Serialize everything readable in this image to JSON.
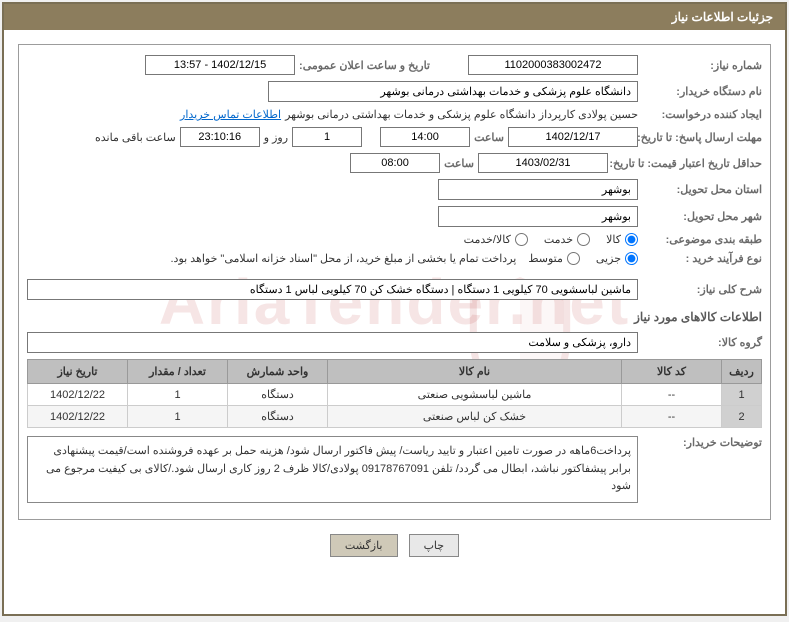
{
  "header": {
    "title": "جزئیات اطلاعات نیاز"
  },
  "fields": {
    "need_number_label": "شماره نیاز:",
    "need_number": "1102000383002472",
    "announce_label": "تاریخ و ساعت اعلان عمومی:",
    "announce_value": "1402/12/15 - 13:57",
    "buyer_org_label": "نام دستگاه خریدار:",
    "buyer_org": "دانشگاه علوم پزشکی و خدمات بهداشتی درمانی بوشهر",
    "requester_label": "ایجاد کننده درخواست:",
    "requester": "حسین پولادی کارپرداز دانشگاه علوم پزشکی و خدمات بهداشتی درمانی بوشهر",
    "contact_link": "اطلاعات تماس خریدار",
    "deadline_label": "مهلت ارسال پاسخ: تا تاریخ:",
    "deadline_date": "1402/12/17",
    "time_label": "ساعت",
    "deadline_time": "14:00",
    "days_count": "1",
    "days_and": "روز و",
    "countdown": "23:10:16",
    "remaining": "ساعت باقی مانده",
    "validity_label": "حداقل تاریخ اعتبار قیمت: تا تاریخ:",
    "validity_date": "1403/02/31",
    "validity_time": "08:00",
    "province_label": "استان محل تحویل:",
    "province": "بوشهر",
    "city_label": "شهر محل تحویل:",
    "city": "بوشهر",
    "category_label": "طبقه بندی موضوعی:",
    "cat_goods": "کالا",
    "cat_service": "خدمت",
    "cat_both": "کالا/خدمت",
    "process_label": "نوع فرآیند خرید :",
    "proc_small": "جزیی",
    "proc_medium": "متوسط",
    "process_note": "پرداخت تمام یا بخشی از مبلغ خرید، از محل \"اسناد خزانه اسلامی\" خواهد بود.",
    "summary_label": "شرح کلی نیاز:",
    "summary": "ماشین لباسشویی 70 کیلویی 1 دستگاه | دستگاه خشک کن 70 کیلویی لباس 1 دستگاه",
    "goods_section": "اطلاعات کالاهای مورد نیاز",
    "group_label": "گروه کالا:",
    "group": "دارو، پزشکی و سلامت",
    "buyer_notes_label": "توضیحات خریدار:",
    "buyer_notes": "پرداخت6ماهه در صورت تامین اعتبار و تایید ریاست/ پیش فاکتور ارسال شود/ هزینه حمل بر عهده فروشنده است/قیمت پیشنهادی برابر پیشفاکتور نباشد، ابطال می گردد/ تلفن 09178767091 پولادی/کالا ظرف 2 روز کاری ارسال شود./کالای بی کیفیت مرجوع می شود"
  },
  "table": {
    "headers": {
      "idx": "ردیف",
      "code": "کد کالا",
      "name": "نام کالا",
      "unit": "واحد شمارش",
      "qty": "تعداد / مقدار",
      "date": "تاریخ نیاز"
    },
    "rows": [
      {
        "idx": "1",
        "code": "--",
        "name": "ماشین لباسشویی صنعتی",
        "unit": "دستگاه",
        "qty": "1",
        "date": "1402/12/22"
      },
      {
        "idx": "2",
        "code": "--",
        "name": "خشک کن لباس صنعتی",
        "unit": "دستگاه",
        "qty": "1",
        "date": "1402/12/22"
      }
    ]
  },
  "buttons": {
    "print": "چاپ",
    "back": "بازگشت"
  },
  "watermark": "AriaTender.net"
}
